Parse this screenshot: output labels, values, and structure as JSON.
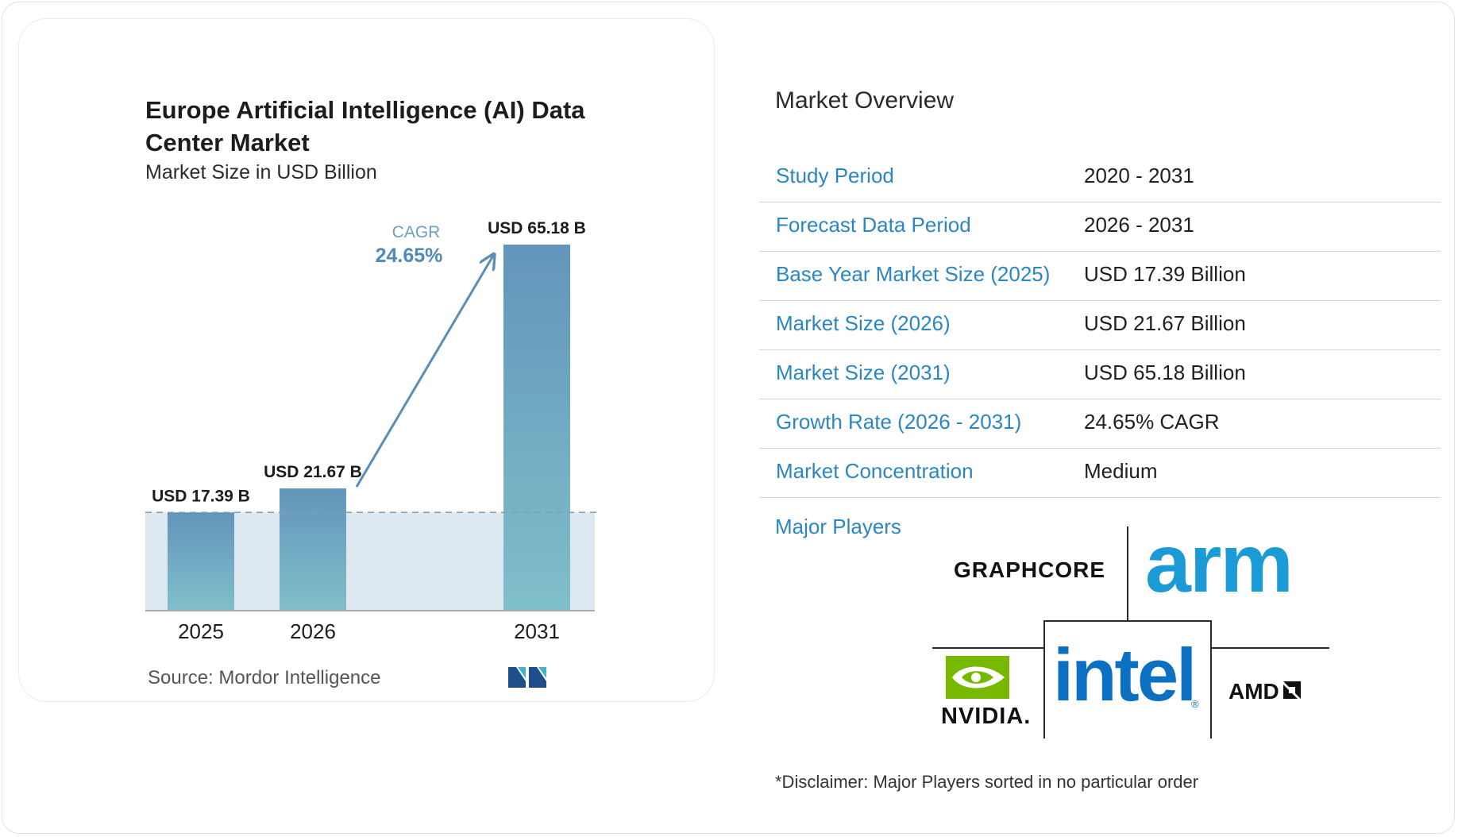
{
  "chart_data": {
    "type": "bar",
    "title": "Europe Artificial Intelligence (AI) Data Center Market",
    "subtitle": "Market Size in USD Billion",
    "categories": [
      "2025",
      "2026",
      "2031"
    ],
    "values": [
      17.39,
      21.67,
      65.18
    ],
    "data_labels": [
      "USD 17.39 B",
      "USD 21.67 B",
      "USD 65.18 B"
    ],
    "annotation": {
      "label": "CAGR",
      "value": "24.65%"
    },
    "reference_line": 17.39,
    "source": "Source:  Mordor Intelligence",
    "colors": {
      "bar_top": "#6395bb",
      "bar_bottom": "#7fbfc9",
      "band": "#dde8f0",
      "arrow": "#5c8db5",
      "cagr_label": "#6e9fc0",
      "cagr_value": "#4f8ab8"
    }
  },
  "overview": {
    "title": "Market Overview",
    "rows": [
      {
        "label": "Study Period",
        "value": "2020 - 2031"
      },
      {
        "label": "Forecast Data Period",
        "value": "2026 - 2031"
      },
      {
        "label": "Base Year Market Size (2025)",
        "value": "USD 17.39 Billion"
      },
      {
        "label": "Market Size (2026)",
        "value": "USD 21.67 Billion"
      },
      {
        "label": "Market Size (2031)",
        "value": "USD 65.18 Billion"
      },
      {
        "label": "Growth Rate (2026 - 2031)",
        "value": "24.65% CAGR"
      },
      {
        "label": "Market Concentration",
        "value": "Medium"
      }
    ],
    "major_players_label": "Major Players",
    "players": {
      "graphcore": "GRAPHCORE",
      "arm": "arm",
      "nvidia": "NVIDIA.",
      "intel": "intel",
      "intel_mark": "®",
      "amd": "AMD"
    },
    "disclaimer": "*Disclaimer: Major Players sorted in no particular order"
  },
  "colors": {
    "accent": "#2b86c2",
    "arm": "#1c9ad6",
    "intel": "#0b6fc2",
    "nvidia": "#76b900"
  }
}
